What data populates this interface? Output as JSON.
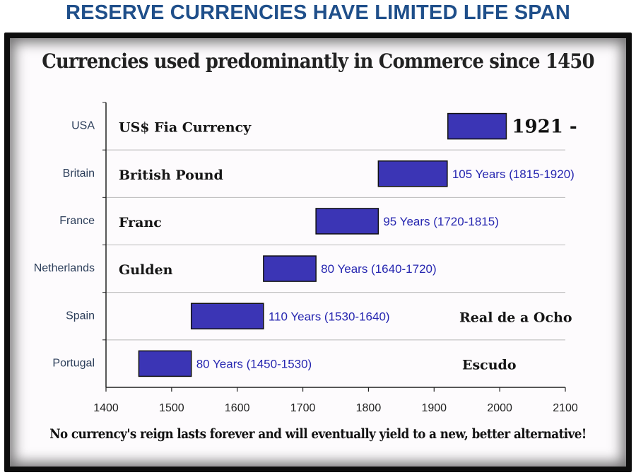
{
  "banner": "RESERVE CURRENCIES HAVE LIMITED LIFE SPAN",
  "chart_data": {
    "type": "bar",
    "orientation": "horizontal",
    "title": "Currencies used predominantly in Commerce since 1450",
    "footer": "No currency's reign lasts forever and will eventually yield to a new, better alternative!",
    "xlim": [
      1400,
      2100
    ],
    "xticks": [
      1400,
      1500,
      1600,
      1700,
      1800,
      1900,
      2000,
      2100
    ],
    "grid": true,
    "bar_color": "#3b35b5",
    "rows": [
      {
        "country": "USA",
        "currency": "US$ Fia Currency",
        "start": 1921,
        "end": 2010,
        "label": "1921 -",
        "label_style": "big",
        "currency_side": "left"
      },
      {
        "country": "Britain",
        "currency": "British Pound",
        "start": 1815,
        "end": 1920,
        "label": "105 Years (1815-1920)",
        "label_style": "normal",
        "currency_side": "left"
      },
      {
        "country": "France",
        "currency": "Franc",
        "start": 1720,
        "end": 1815,
        "label": "95 Years (1720-1815)",
        "label_style": "normal",
        "currency_side": "left"
      },
      {
        "country": "Netherlands",
        "currency": "Gulden",
        "start": 1640,
        "end": 1720,
        "label": "80 Years (1640-1720)",
        "label_style": "normal",
        "currency_side": "left"
      },
      {
        "country": "Spain",
        "currency": "Real de a Ocho",
        "start": 1530,
        "end": 1640,
        "label": "110 Years (1530-1640)",
        "label_style": "normal",
        "currency_side": "right"
      },
      {
        "country": "Portugal",
        "currency": "Escudo",
        "start": 1450,
        "end": 1530,
        "label": "80 Years (1450-1530)",
        "label_style": "normal",
        "currency_side": "right"
      }
    ]
  }
}
